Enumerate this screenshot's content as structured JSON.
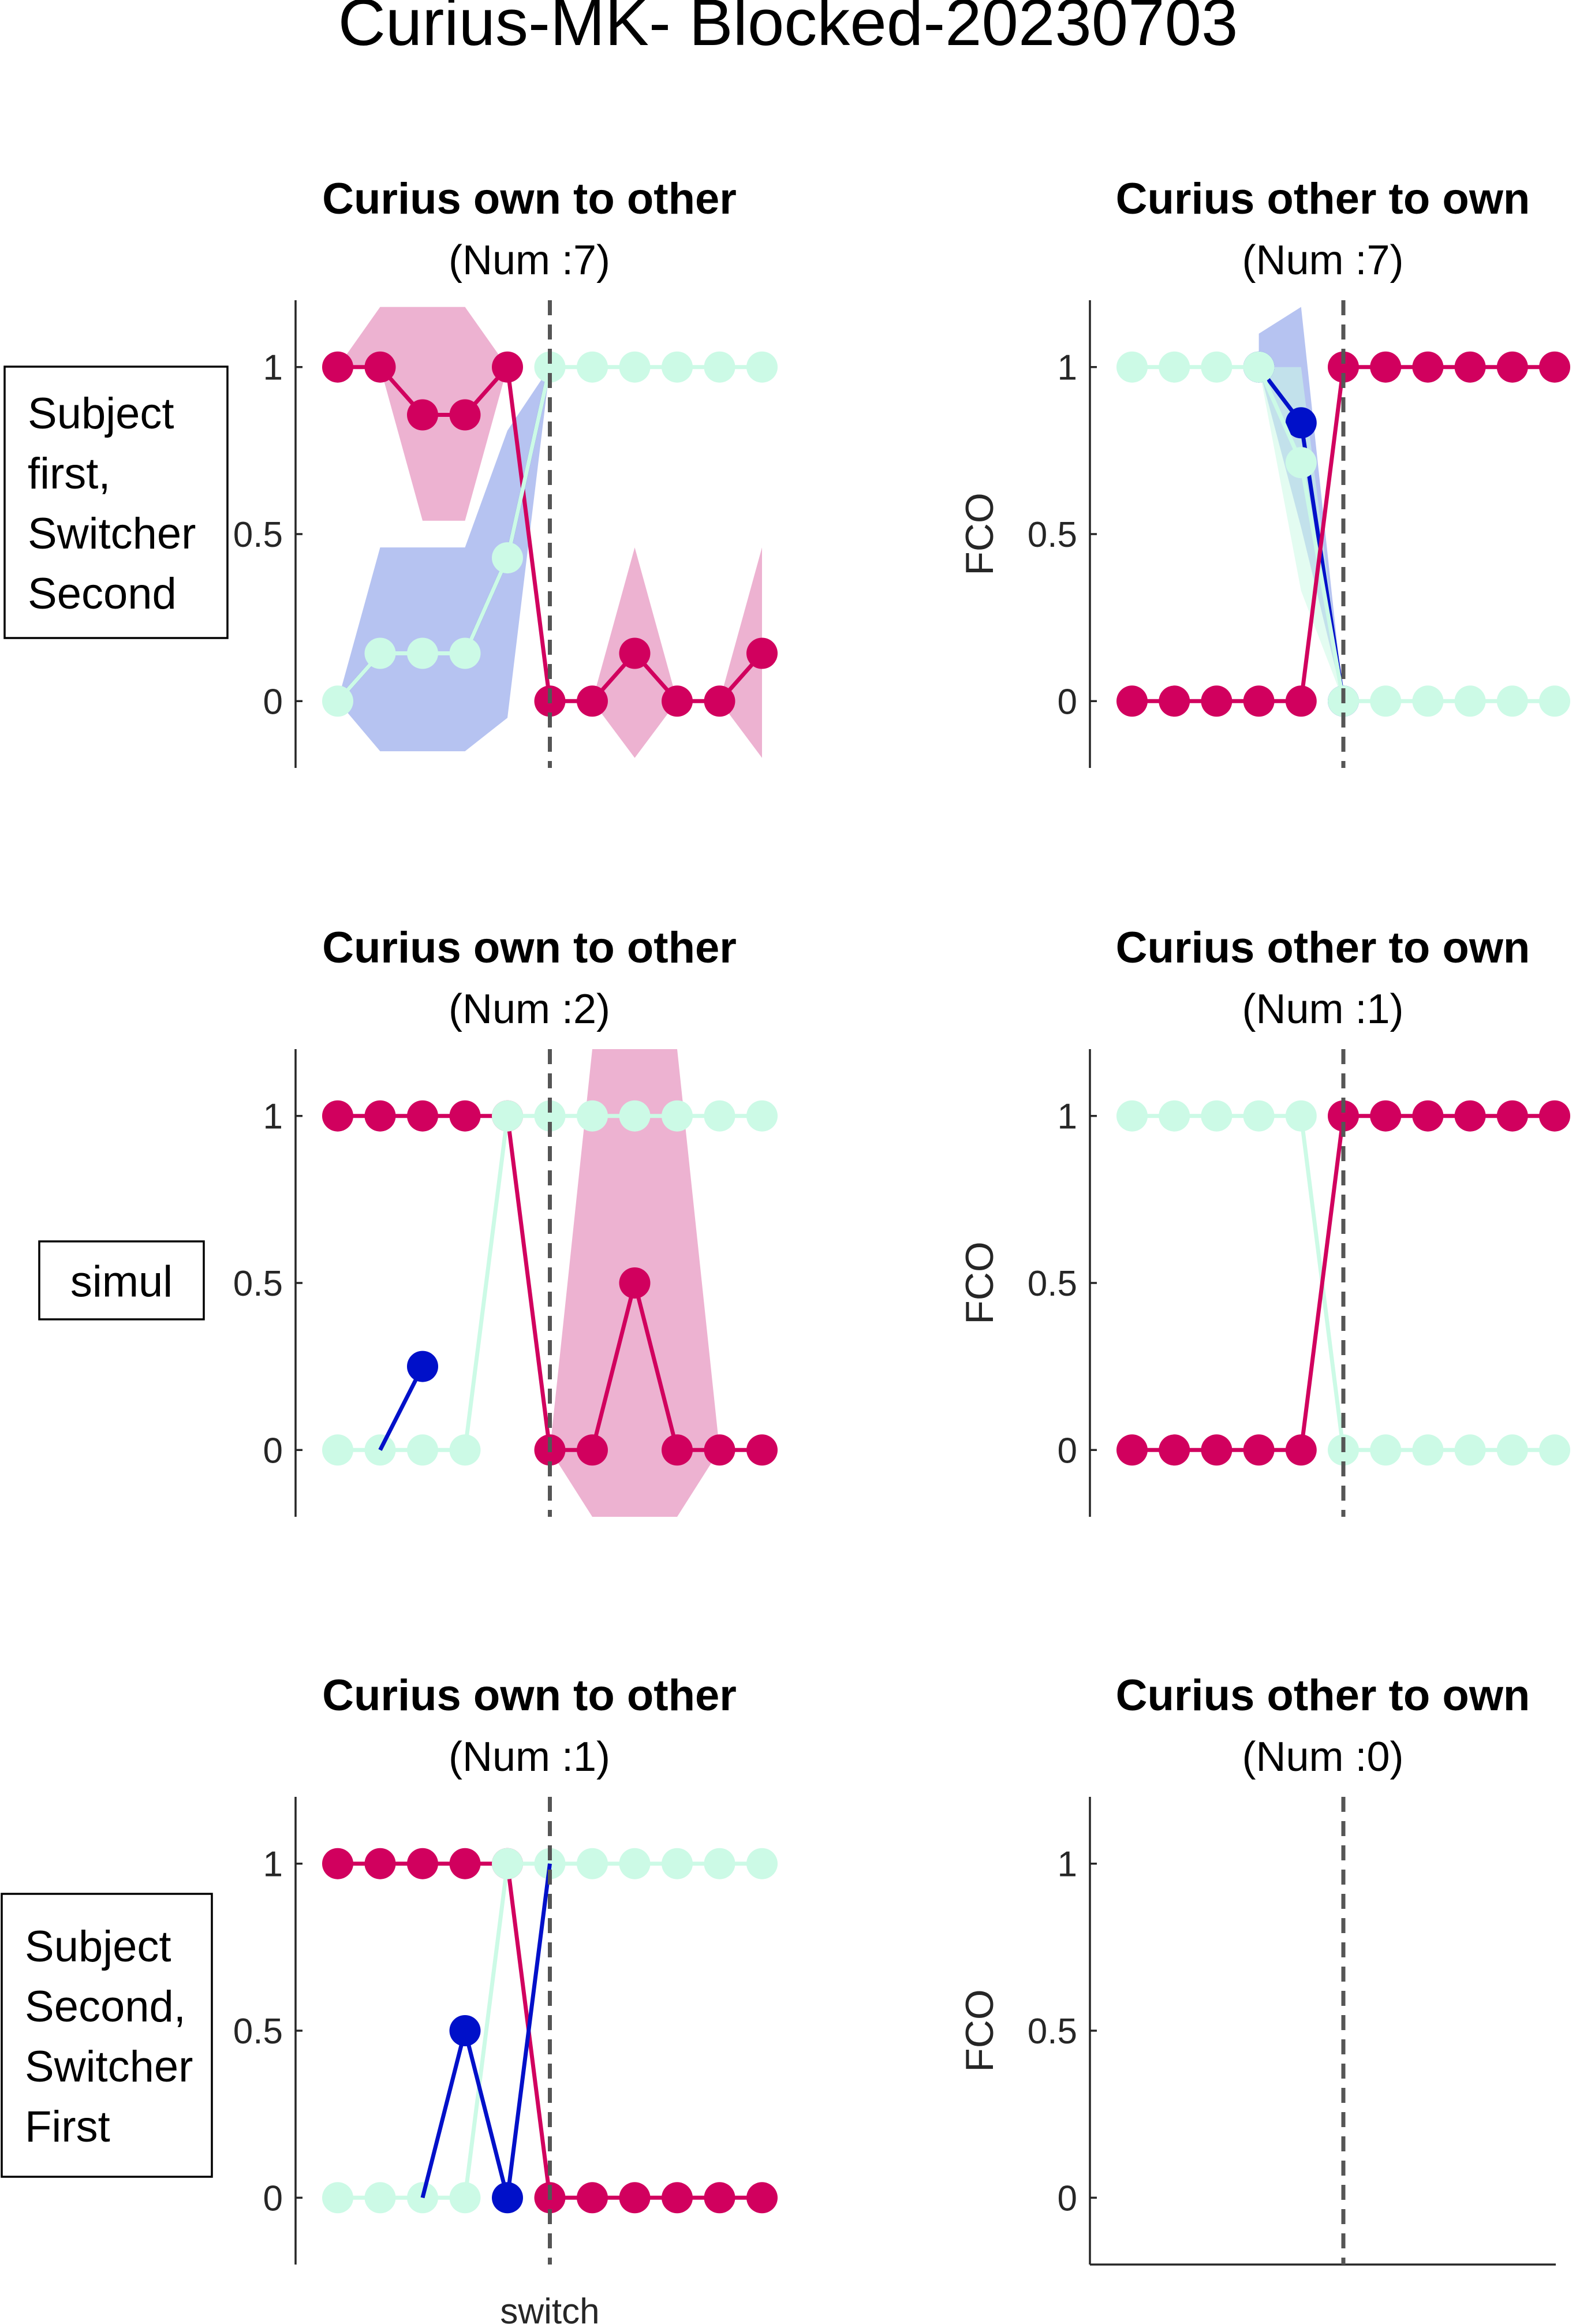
{
  "figure": {
    "suptitle": "Curius-MK- Blocked-20230703",
    "x_label": "switch",
    "y_label": "FCO",
    "y_tick_labels": [
      "0",
      "0.5",
      "1"
    ],
    "row_labels": [
      [
        "Subject",
        "first,",
        "Switcher",
        "Second"
      ],
      [
        "simul"
      ],
      [
        "Subject",
        "Second,",
        "Switcher",
        "First"
      ]
    ]
  },
  "colors": {
    "magenta": "#d1005e",
    "magenta_band": "#eaa5c9",
    "blue": "#0010c9",
    "blue_band": "#a9b8ef",
    "mint": "#ccfae6",
    "switch_line": "#555555"
  },
  "chart_data": [
    {
      "type": "line",
      "title": "Curius own to other",
      "subtitle": "(Num :7)",
      "x": [
        -5,
        -4,
        -3,
        -2,
        -1,
        0,
        1,
        2,
        3,
        4,
        5
      ],
      "ylim": [
        -0.2,
        1.2
      ],
      "series": [
        {
          "color": "magenta",
          "values": [
            1,
            1,
            0.857,
            0.857,
            1,
            0,
            0,
            0.143,
            0,
            0,
            0.143
          ],
          "band_low": [
            1,
            1,
            0.54,
            0.54,
            1,
            0,
            0,
            -0.17,
            0,
            0,
            -0.17
          ],
          "band_high": [
            1,
            1.18,
            1.18,
            1.18,
            1,
            0,
            0,
            0.46,
            0,
            0,
            0.46
          ]
        },
        {
          "color": "blue",
          "values": [
            0,
            0.143,
            0.143,
            0.143,
            0.429,
            1,
            null,
            null,
            null,
            null,
            null
          ],
          "band_low": [
            0,
            -0.15,
            -0.15,
            -0.15,
            -0.05,
            1,
            null,
            null,
            null,
            null,
            null
          ],
          "band_high": [
            0,
            0.46,
            0.46,
            0.46,
            0.81,
            1,
            null,
            null,
            null,
            null,
            null
          ]
        },
        {
          "color": "mint",
          "values": [
            0,
            0.143,
            0.143,
            0.143,
            0.429,
            1,
            1,
            1,
            1,
            1,
            1
          ]
        }
      ]
    },
    {
      "type": "line",
      "title": "Curius other to own",
      "subtitle": "(Num :7)",
      "x": [
        -5,
        -4,
        -3,
        -2,
        -1,
        0,
        1,
        2,
        3,
        4,
        5
      ],
      "ylim": [
        -0.2,
        1.2
      ],
      "series": [
        {
          "color": "blue",
          "values": [
            null,
            null,
            null,
            1,
            0.833,
            0,
            null,
            null,
            null,
            null,
            null
          ],
          "band_low": [
            null,
            null,
            null,
            1,
            0.52,
            0,
            null,
            null,
            null,
            null,
            null
          ],
          "band_high": [
            null,
            null,
            null,
            1.1,
            1.18,
            0,
            null,
            null,
            null,
            null,
            null
          ]
        },
        {
          "color": "mint",
          "values": [
            1,
            1,
            1,
            1,
            0.714,
            0,
            0,
            0,
            0,
            0,
            0
          ],
          "band_low": [
            1,
            1,
            1,
            1,
            0.33,
            0,
            0,
            0,
            0,
            0,
            0
          ],
          "band_high": [
            1,
            1,
            1,
            1,
            1.0,
            0,
            0,
            0,
            0,
            0,
            0
          ]
        },
        {
          "color": "magenta",
          "values": [
            0,
            0,
            0,
            0,
            0,
            1,
            1,
            1,
            1,
            1,
            1
          ]
        }
      ]
    },
    {
      "type": "line",
      "title": "Curius own to other",
      "subtitle": "(Num :2)",
      "x": [
        -5,
        -4,
        -3,
        -2,
        -1,
        0,
        1,
        2,
        3,
        4,
        5
      ],
      "ylim": [
        -0.2,
        1.2
      ],
      "series": [
        {
          "color": "magenta",
          "values": [
            1,
            1,
            1,
            1,
            1,
            0,
            0,
            0.5,
            0,
            0,
            0
          ],
          "band_low": [
            1,
            1,
            1,
            1,
            1,
            0,
            -0.2,
            -0.2,
            -0.2,
            0,
            0
          ],
          "band_high": [
            1,
            1,
            1,
            1,
            1,
            0,
            1.2,
            1.2,
            1.2,
            0,
            0
          ]
        },
        {
          "color": "mint",
          "values": [
            0,
            0,
            0,
            0,
            1,
            1,
            1,
            1,
            1,
            1,
            1
          ]
        },
        {
          "color": "blue",
          "values": [
            null,
            0,
            0.25,
            null,
            null,
            null,
            null,
            null,
            null,
            null,
            null
          ],
          "markers": [
            false,
            false,
            true,
            false,
            false,
            false,
            false,
            false,
            false,
            false,
            false
          ]
        }
      ]
    },
    {
      "type": "line",
      "title": "Curius other to own",
      "subtitle": "(Num :1)",
      "x": [
        -5,
        -4,
        -3,
        -2,
        -1,
        0,
        1,
        2,
        3,
        4,
        5
      ],
      "ylim": [
        -0.2,
        1.2
      ],
      "series": [
        {
          "color": "mint",
          "values": [
            1,
            1,
            1,
            1,
            1,
            0,
            0,
            0,
            0,
            0,
            0
          ]
        },
        {
          "color": "magenta",
          "values": [
            0,
            0,
            0,
            0,
            0,
            1,
            1,
            1,
            1,
            1,
            1
          ]
        }
      ]
    },
    {
      "type": "line",
      "title": "Curius own to other",
      "subtitle": "(Num :1)",
      "x": [
        -5,
        -4,
        -3,
        -2,
        -1,
        0,
        1,
        2,
        3,
        4,
        5
      ],
      "ylim": [
        -0.2,
        1.2
      ],
      "series": [
        {
          "color": "magenta",
          "values": [
            1,
            1,
            1,
            1,
            1,
            0,
            0,
            0,
            0,
            0,
            0
          ]
        },
        {
          "color": "mint",
          "values": [
            0,
            0,
            0,
            0,
            1,
            1,
            1,
            1,
            1,
            1,
            1
          ]
        },
        {
          "color": "blue",
          "values": [
            null,
            null,
            0,
            0.5,
            0,
            1,
            null,
            null,
            null,
            null,
            null
          ],
          "markers": [
            false,
            false,
            false,
            true,
            true,
            false,
            false,
            false,
            false,
            false,
            false
          ]
        }
      ]
    },
    {
      "type": "line",
      "title": "Curius other to own",
      "subtitle": "(Num :0)",
      "x": [
        -5,
        -4,
        -3,
        -2,
        -1,
        0,
        1,
        2,
        3,
        4,
        5
      ],
      "ylim": [
        -0.2,
        1.2
      ],
      "series": []
    }
  ]
}
